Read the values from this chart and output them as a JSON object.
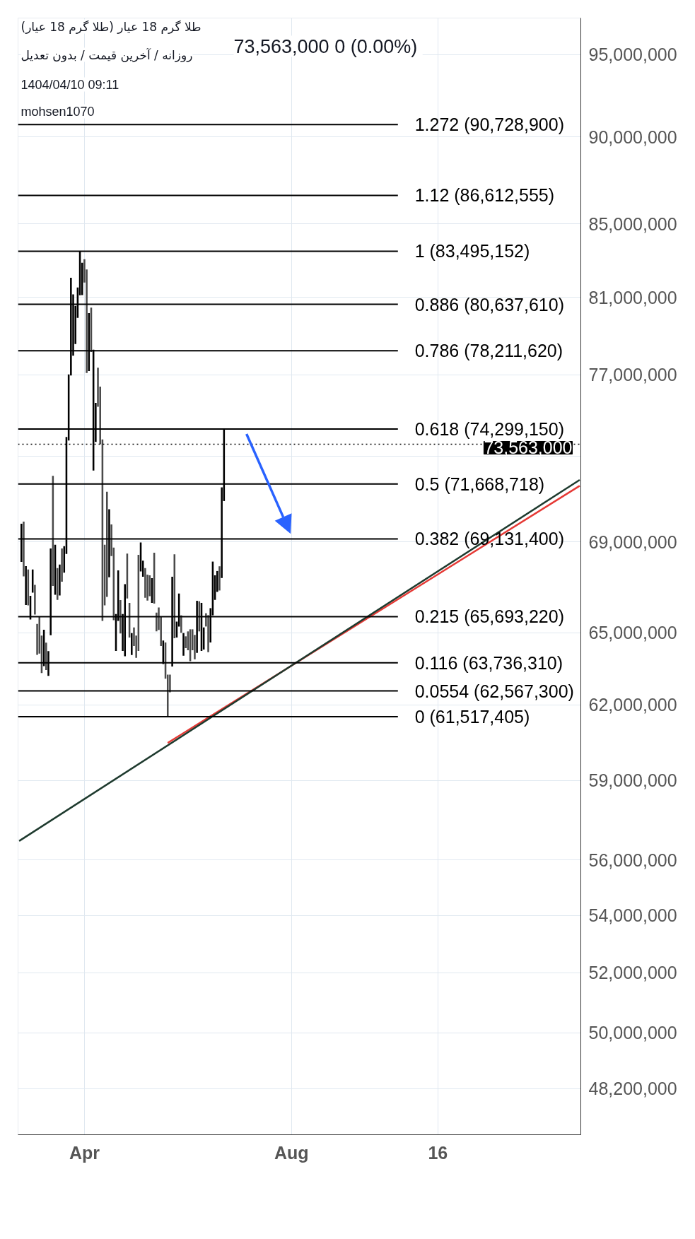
{
  "chart_data": {
    "type": "bar",
    "title": "طلا گرم 18 عیار (طلا گرم 18 عیار)",
    "subtitle": "روزانه / آخرین قیمت / بدون تعدیل",
    "annotations": [
      "73,563,000  0 (0.00%)",
      "1404/04/10 09:11",
      "mohsen1070"
    ],
    "categories": [
      null,
      null,
      null,
      null,
      null,
      null,
      null,
      null,
      null,
      null,
      null,
      null,
      null,
      null,
      null,
      null,
      null,
      null,
      null,
      null,
      null,
      null,
      null,
      null,
      null,
      null,
      null,
      null,
      null,
      "Apr",
      null,
      null,
      null,
      null,
      null,
      null,
      null,
      null,
      null,
      null,
      null,
      null,
      null,
      null,
      null,
      null,
      null,
      null,
      null,
      null,
      null,
      null,
      null,
      null,
      null,
      null,
      null,
      null,
      null,
      null,
      null,
      null,
      null,
      null,
      null,
      null,
      null,
      null,
      null,
      null,
      null,
      null,
      null,
      null,
      null,
      null,
      null,
      null,
      null,
      null,
      null,
      null,
      null,
      null,
      null,
      null,
      null,
      null,
      null,
      null,
      null,
      null,
      null,
      null,
      null,
      null,
      null,
      null,
      null,
      null,
      null,
      null,
      null,
      null,
      null,
      null,
      null,
      null,
      null,
      null,
      null,
      null,
      null,
      null,
      null,
      null,
      null,
      null,
      null,
      null,
      null,
      "Aug",
      null,
      null,
      null,
      null,
      null,
      null,
      null,
      null,
      null,
      null,
      null,
      null,
      null,
      null,
      null,
      null,
      null,
      null,
      null,
      null,
      null,
      null,
      null,
      null,
      null,
      null,
      null,
      null,
      null,
      null,
      null,
      null,
      null,
      null,
      null,
      null,
      null,
      null,
      null,
      null,
      null,
      null,
      null,
      null,
      null,
      null,
      null,
      null,
      null,
      null,
      null,
      null,
      null,
      null,
      null,
      null,
      null,
      null,
      null,
      null,
      null,
      null,
      null,
      null,
      "16",
      null,
      null,
      null,
      null,
      null,
      null,
      null,
      null,
      null,
      null,
      null,
      null,
      null,
      null,
      null,
      null,
      null,
      null,
      null,
      null,
      null,
      null,
      null,
      null,
      null,
      null,
      null,
      null,
      null,
      null,
      null,
      null,
      null,
      null,
      null,
      null,
      null,
      null,
      null,
      null,
      null,
      null,
      null,
      null,
      null,
      null,
      null,
      null,
      null,
      null,
      null,
      null,
      null,
      null,
      null,
      null,
      null,
      null,
      null,
      null,
      null,
      null,
      null
    ],
    "base": [
      null,
      68100000,
      67450000,
      66200000,
      66180000,
      65570000,
      66740000,
      65780000,
      64070000,
      64120000,
      63310000,
      63590000,
      63430000,
      63190000,
      64900000,
      67030000,
      66640000,
      66420000,
      66610000,
      67220000,
      67620000,
      68450000,
      73740000,
      76960000,
      77960000,
      78560000,
      79920000,
      81120000,
      81130000,
      81800000,
      77080000,
      77180000,
      78150000,
      72300000,
      73670000,
      75390000,
      73560000,
      65510000,
      66180000,
      66550000,
      67410000,
      68360000,
      65540000,
      64230000,
      65510000,
      64970000,
      64230000,
      64010000,
      66480000,
      64800000,
      64060000,
      64440000,
      63940000,
      64230000,
      67670000,
      67440000,
      66510000,
      66390000,
      66580000,
      66290000,
      66260000,
      65060000,
      65120000,
      64440000,
      63680000,
      63070000,
      61520000,
      62510000,
      63580000,
      64770000,
      64800000,
      65270000,
      65000000,
      64030000,
      64350000,
      64260000,
      63800000,
      64260000,
      63880000,
      64150000,
      65060000,
      64230000,
      64290000,
      65270000,
      64180000,
      64590000,
      65750000,
      66420000,
      66770000,
      66830000,
      67380000,
      70870000,
      null,
      null,
      null,
      null,
      null,
      null,
      null,
      null,
      null,
      null,
      null,
      null,
      null,
      null,
      null,
      null,
      null,
      null,
      null,
      null,
      null,
      null,
      null,
      null,
      null,
      null,
      null,
      null,
      null,
      null,
      null,
      null,
      null,
      null,
      null,
      null,
      null,
      null,
      null,
      null,
      null,
      null,
      null,
      null,
      null,
      null,
      null,
      null,
      null,
      null,
      null,
      null,
      null,
      null,
      null,
      null,
      null,
      null,
      null,
      null,
      null,
      null,
      null,
      null,
      null,
      null,
      null,
      null,
      null,
      null,
      null,
      null,
      null,
      null,
      null,
      null,
      null,
      null,
      null,
      null,
      null,
      null,
      null,
      null,
      null,
      null,
      null,
      null,
      null,
      null,
      null,
      null,
      null,
      null,
      null,
      null,
      null,
      null,
      null,
      null,
      null,
      null,
      null,
      null,
      null,
      null,
      null,
      null,
      null,
      null,
      null,
      null,
      null,
      null,
      null,
      null,
      null,
      null,
      null,
      null,
      null,
      null,
      null,
      null,
      null,
      null,
      null,
      null,
      null,
      null,
      null,
      null,
      null,
      null,
      null,
      null,
      null,
      null,
      null,
      null,
      null,
      null,
      null,
      null,
      null,
      null,
      null,
      null,
      null,
      null,
      null,
      null,
      null,
      null,
      null,
      null,
      null,
      null
    ],
    "values": [
      null,
      1720000,
      2470000,
      1710000,
      1580000,
      1030000,
      1020000,
      1300000,
      1310000,
      1590000,
      1570000,
      1540000,
      1150000,
      1030000,
      3800000,
      5020000,
      2230000,
      1400000,
      1370000,
      1480000,
      1180000,
      5460000,
      3270000,
      5090000,
      3200000,
      1990000,
      1610000,
      2370000,
      1740000,
      1260000,
      5420000,
      2990000,
      2310000,
      5970000,
      1920000,
      1960000,
      2840000,
      8280000,
      2690000,
      4750000,
      3080000,
      1430000,
      3200000,
      1580000,
      2210000,
      1440000,
      1580000,
      3100000,
      1990000,
      1490000,
      930000,
      790000,
      940000,
      4180000,
      1300000,
      710000,
      1310000,
      1140000,
      920000,
      1080000,
      2250000,
      810000,
      970000,
      1270000,
      990000,
      1520000,
      1720000,
      730000,
      3860000,
      3670000,
      680000,
      1430000,
      750000,
      960000,
      500000,
      800000,
      1350000,
      890000,
      1030000,
      2230000,
      1300000,
      2060000,
      940000,
      570000,
      1580000,
      1470000,
      2360000,
      1080000,
      920000,
      1070000,
      4130000,
      3430000,
      null,
      null,
      null,
      null,
      null,
      null,
      null,
      null,
      null,
      null,
      null,
      null,
      null,
      null,
      null,
      null,
      null,
      null,
      null,
      null,
      null,
      null,
      null,
      null,
      null,
      null,
      null,
      null,
      null,
      null,
      null,
      null,
      null,
      null,
      null,
      null,
      null,
      null,
      null,
      null,
      null,
      null,
      null,
      null,
      null,
      null,
      null,
      null,
      null,
      null,
      null,
      null,
      null,
      null,
      null,
      null,
      null,
      null,
      null,
      null,
      null,
      null,
      null,
      null,
      null,
      null,
      null,
      null,
      null,
      null,
      null,
      null,
      null,
      null,
      null,
      null,
      null,
      null,
      null,
      null,
      null,
      null,
      null,
      null,
      null,
      null,
      null,
      null,
      null,
      null,
      null,
      null,
      null,
      null,
      null,
      null,
      null,
      null,
      null,
      null,
      null,
      null,
      null,
      null,
      null,
      null,
      null,
      null,
      null,
      null,
      null,
      null,
      null,
      null,
      null,
      null,
      null,
      null,
      null,
      null,
      null,
      null,
      null,
      null,
      null,
      null,
      null,
      null,
      null,
      null,
      null,
      null,
      null,
      null,
      null,
      null,
      null,
      null,
      null,
      null,
      null,
      null,
      null,
      null,
      null,
      null,
      null,
      null,
      null,
      null,
      null,
      null,
      null,
      null,
      null,
      null,
      null,
      null
    ],
    "colors": [
      null,
      "#000000",
      "#4a4a4a",
      "#000000",
      "#4a4a4a",
      "#000000",
      "#000000",
      "#4a4a4a",
      "#4a4a4a",
      "#4a4a4a",
      "#4a4a4a",
      "#000000",
      "#4a4a4a",
      "#000000",
      "#000000",
      "#4a4a4a",
      "#000000",
      "#4a4a4a",
      "#000000",
      "#4a4a4a",
      "#000000",
      "#000000",
      "#000000",
      "#000000",
      "#000000",
      "#000000",
      "#000000",
      "#000000",
      "#000000",
      "#4a4a4a",
      "#4a4a4a",
      "#000000",
      "#4a4a4a",
      "#000000",
      "#000000",
      "#4a4a4a",
      "#4a4a4a",
      "#4a4a4a",
      "#4a4a4a",
      "#4a4a4a",
      "#000000",
      "#4a4a4a",
      "#4a4a4a",
      "#000000",
      "#000000",
      "#4a4a4a",
      "#000000",
      "#000000",
      "#4a4a4a",
      "#4a4a4a",
      "#000000",
      "#4a4a4a",
      "#4a4a4a",
      "#4a4a4a",
      "#000000",
      "#000000",
      "#4a4a4a",
      "#4a4a4a",
      "#4a4a4a",
      "#000000",
      "#4a4a4a",
      "#4a4a4a",
      "#4a4a4a",
      "#4a4a4a",
      "#000000",
      "#4a4a4a",
      "#4a4a4a",
      "#4a4a4a",
      "#000000",
      "#4a4a4a",
      "#000000",
      "#000000",
      "#4a4a4a",
      "#000000",
      "#4a4a4a",
      "#4a4a4a",
      "#4a4a4a",
      "#4a4a4a",
      "#4a4a4a",
      "#000000",
      "#4a4a4a",
      "#000000",
      "#000000",
      "#4a4a4a",
      "#4a4a4a",
      "#000000",
      "#000000",
      "#000000",
      "#000000",
      "#4a4a4a",
      "#000000",
      "#000000",
      null,
      null,
      null,
      null,
      null,
      null,
      null,
      null,
      null,
      null,
      null,
      null,
      null,
      null,
      null,
      null,
      null,
      null,
      null,
      null,
      null,
      null,
      null,
      null,
      null,
      null,
      null,
      null,
      null,
      null,
      null,
      null,
      null,
      null,
      null,
      null,
      null,
      null,
      null,
      null,
      null,
      null,
      null,
      null,
      null,
      null,
      null,
      null,
      null,
      null,
      null,
      null,
      null,
      null,
      null,
      null,
      null,
      null,
      null,
      null,
      null,
      null,
      null,
      null,
      null,
      null,
      null,
      null,
      null,
      null,
      null,
      null,
      null,
      null,
      null,
      null,
      null,
      null,
      null,
      null,
      null,
      null,
      null,
      null,
      null,
      null,
      null,
      null,
      null,
      null,
      null,
      null,
      null,
      null,
      null,
      null,
      null,
      null,
      null,
      null,
      null,
      null,
      null,
      null,
      null,
      null,
      null,
      null,
      null,
      null,
      null,
      null,
      null,
      null,
      null,
      null,
      null,
      null,
      null,
      null,
      null,
      null,
      null,
      null,
      null,
      null,
      null,
      null,
      null,
      null,
      null,
      null,
      null,
      null,
      null,
      null,
      null,
      null,
      null,
      null,
      null,
      null,
      null,
      null,
      null,
      null,
      null,
      null,
      null,
      null,
      null,
      null,
      null,
      null,
      null,
      null,
      null,
      null
    ],
    "series": [
      {
        "type": "line",
        "color": "#e53935",
        "values": [
          null,
          null,
          null,
          null,
          null,
          null,
          null,
          null,
          null,
          null,
          null,
          null,
          null,
          null,
          null,
          null,
          null,
          null,
          null,
          null,
          null,
          null,
          null,
          null,
          null,
          null,
          null,
          null,
          null,
          null,
          null,
          null,
          null,
          null,
          null,
          null,
          null,
          null,
          null,
          null,
          null,
          null,
          null,
          null,
          null,
          null,
          null,
          null,
          null,
          null,
          null,
          null,
          null,
          null,
          null,
          null,
          null,
          null,
          null,
          null,
          null,
          null,
          null,
          null,
          null,
          null,
          60470000,
          null,
          null,
          null,
          null,
          null,
          null,
          null,
          null,
          null,
          null,
          null,
          null,
          null,
          null,
          null,
          null,
          null,
          null,
          null,
          null,
          null,
          null,
          null,
          null,
          null,
          null,
          null,
          null,
          null,
          null,
          null,
          null,
          null,
          null,
          null,
          null,
          null,
          null,
          null,
          null,
          null,
          null,
          null,
          null,
          null,
          null,
          null,
          null,
          null,
          null,
          null,
          null,
          null,
          null,
          null,
          null,
          null,
          null,
          null,
          null,
          null,
          null,
          null,
          null,
          null,
          null,
          null,
          null,
          null,
          null,
          null,
          null,
          null,
          null,
          null,
          null,
          null,
          null,
          null,
          null,
          null,
          null,
          null,
          null,
          null,
          null,
          null,
          null,
          null,
          null,
          null,
          null,
          null,
          null,
          null,
          null,
          null,
          null,
          null,
          null,
          null,
          null,
          null,
          null,
          null,
          null,
          null,
          null,
          null,
          null,
          null,
          null,
          null,
          null,
          null,
          null,
          null,
          null,
          null,
          null,
          null,
          null,
          null,
          null,
          null,
          null,
          null,
          null,
          null,
          null,
          null,
          null,
          null,
          null,
          null,
          null,
          null,
          null,
          null,
          null,
          null,
          null,
          null,
          null,
          null,
          null,
          null,
          null,
          null,
          null,
          null,
          null,
          null,
          null,
          null,
          null,
          null,
          null,
          null,
          null,
          null,
          null,
          null,
          null,
          null,
          null,
          null,
          null,
          null,
          null,
          null,
          null,
          null,
          null,
          null,
          null,
          null,
          null,
          null,
          null,
          null,
          null,
          71580000
        ]
      },
      {
        "type": "line",
        "color": "#1e3a2e",
        "values": [
          56700000,
          null,
          null,
          null,
          null,
          null,
          null,
          null,
          null,
          null,
          null,
          null,
          null,
          null,
          null,
          null,
          null,
          null,
          null,
          null,
          null,
          null,
          null,
          null,
          null,
          null,
          null,
          null,
          null,
          null,
          null,
          null,
          null,
          null,
          null,
          null,
          null,
          null,
          null,
          null,
          null,
          null,
          null,
          null,
          null,
          null,
          null,
          null,
          null,
          null,
          null,
          null,
          null,
          null,
          null,
          null,
          null,
          null,
          null,
          null,
          null,
          null,
          null,
          null,
          null,
          null,
          null,
          null,
          null,
          null,
          null,
          null,
          null,
          null,
          null,
          null,
          null,
          null,
          null,
          null,
          null,
          null,
          null,
          null,
          null,
          null,
          null,
          null,
          null,
          null,
          null,
          null,
          null,
          null,
          null,
          null,
          null,
          null,
          null,
          null,
          null,
          null,
          null,
          null,
          null,
          null,
          null,
          null,
          null,
          null,
          null,
          null,
          null,
          null,
          null,
          null,
          null,
          null,
          null,
          null,
          null,
          null,
          null,
          null,
          null,
          null,
          null,
          null,
          null,
          null,
          null,
          null,
          null,
          null,
          null,
          null,
          null,
          null,
          null,
          null,
          null,
          null,
          null,
          null,
          null,
          null,
          null,
          null,
          null,
          null,
          null,
          null,
          null,
          null,
          null,
          null,
          null,
          null,
          null,
          null,
          null,
          null,
          null,
          null,
          null,
          null,
          null,
          null,
          null,
          null,
          null,
          null,
          null,
          null,
          null,
          null,
          null,
          null,
          null,
          null,
          null,
          null,
          null,
          null,
          null,
          null,
          null,
          null,
          null,
          null,
          null,
          null,
          null,
          null,
          null,
          null,
          null,
          null,
          null,
          null,
          null,
          null,
          null,
          null,
          null,
          null,
          null,
          null,
          null,
          null,
          null,
          null,
          null,
          null,
          null,
          null,
          null,
          null,
          null,
          null,
          null,
          null,
          null,
          null,
          null,
          null,
          null,
          null,
          null,
          null,
          null,
          null,
          null,
          null,
          null,
          null,
          null,
          null,
          null,
          null,
          null,
          null,
          null,
          null,
          null,
          null,
          null,
          null,
          null,
          71860000
        ]
      }
    ],
    "ref_lines": [
      {
        "axis": "y",
        "value": 90728900,
        "label": "1.272 (90,728,900)",
        "color": "#000000",
        "line_style": "solid"
      },
      {
        "axis": "y",
        "value": 86612555,
        "label": "1.12 (86,612,555)",
        "color": "#000000",
        "line_style": "solid"
      },
      {
        "axis": "y",
        "value": 83495152,
        "label": "1 (83,495,152)",
        "color": "#000000",
        "line_style": "solid"
      },
      {
        "axis": "y",
        "value": 80637610,
        "label": "0.886 (80,637,610)",
        "color": "#000000",
        "line_style": "solid"
      },
      {
        "axis": "y",
        "value": 78211620,
        "label": "0.786 (78,211,620)",
        "color": "#000000",
        "line_style": "solid"
      },
      {
        "axis": "y",
        "value": 74299150,
        "label": "0.618 (74,299,150)",
        "color": "#000000",
        "line_style": "solid"
      },
      {
        "axis": "y",
        "value": 71668718,
        "label": "0.5 (71,668,718)",
        "color": "#000000",
        "line_style": "solid"
      },
      {
        "axis": "y",
        "value": 69131400,
        "label": "0.382 (69,131,400)",
        "color": "#000000",
        "line_style": "solid"
      },
      {
        "axis": "y",
        "value": 65693220,
        "label": "0.215 (65,693,220)",
        "color": "#000000",
        "line_style": "solid"
      },
      {
        "axis": "y",
        "value": 63736310,
        "label": "0.116 (63,736,310)",
        "color": "#000000",
        "line_style": "solid"
      },
      {
        "axis": "y",
        "value": 62567300,
        "label": "0.0554 (62,567,300)",
        "color": "#000000",
        "line_style": "solid"
      },
      {
        "axis": "y",
        "value": 61517405,
        "label": "0 (61,517,405)",
        "color": "#000000",
        "line_style": "solid"
      },
      {
        "axis": "y",
        "value": 73563000,
        "label": "73,563,000",
        "color": "#000000",
        "line_style": "dotted"
      }
    ],
    "log": "y",
    "ylim": [
      46760000,
      97300000
    ],
    "yticks": [
      {
        "value": 95000000,
        "label": "95,000,000"
      },
      {
        "value": 90000000,
        "label": "90,000,000"
      },
      {
        "value": 85000000,
        "label": "85,000,000"
      },
      {
        "value": 81000000,
        "label": "81,000,000"
      },
      {
        "value": 77000000,
        "label": "77,000,000"
      },
      {
        "value": 73000000,
        "label": null
      },
      {
        "value": 69000000,
        "label": "69,000,000"
      },
      {
        "value": 65000000,
        "label": "65,000,000"
      },
      {
        "value": 62000000,
        "label": "62,000,000"
      },
      {
        "value": 59000000,
        "label": "59,000,000"
      },
      {
        "value": 56000000,
        "label": "56,000,000"
      },
      {
        "value": 54000000,
        "label": "54,000,000"
      },
      {
        "value": 52000000,
        "label": "52,000,000"
      },
      {
        "value": 50000000,
        "label": "50,000,000"
      },
      {
        "value": 48200000,
        "label": "48,200,000"
      }
    ],
    "grid": true
  }
}
